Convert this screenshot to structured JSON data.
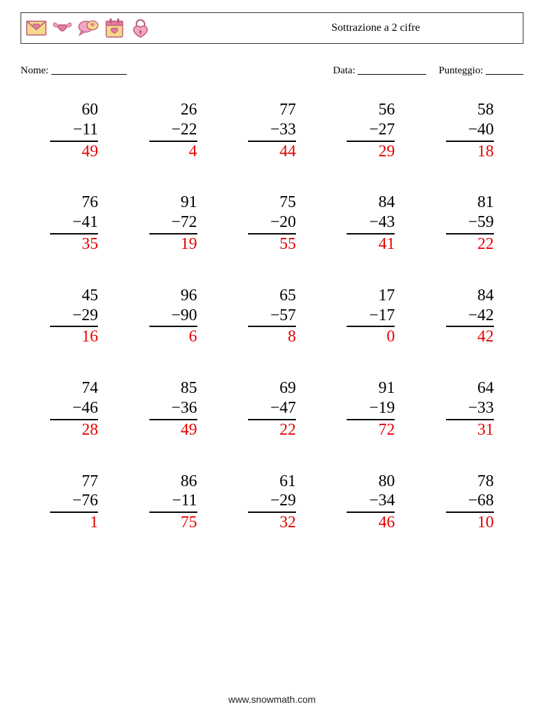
{
  "header": {
    "title": "Sottrazione a 2 cifre",
    "icon_stroke": "#b85c78",
    "icon_fill": "#f2a6c2",
    "icon_accent": "#e57ba0",
    "icon_box": "#f5d88a"
  },
  "labels": {
    "name": "Nome:",
    "date": "Data:",
    "score": "Punteggio:"
  },
  "style": {
    "rows": 5,
    "cols": 5,
    "answer_color": "#e60000",
    "text_color": "#000000",
    "font_size_problem": 24,
    "minus_sign": "−",
    "blank_name_w": 110,
    "blank_date_w": 100,
    "blank_score_w": 55
  },
  "problems": [
    {
      "a": 60,
      "b": 11,
      "ans": 49
    },
    {
      "a": 26,
      "b": 22,
      "ans": 4
    },
    {
      "a": 77,
      "b": 33,
      "ans": 44
    },
    {
      "a": 56,
      "b": 27,
      "ans": 29
    },
    {
      "a": 58,
      "b": 40,
      "ans": 18
    },
    {
      "a": 76,
      "b": 41,
      "ans": 35
    },
    {
      "a": 91,
      "b": 72,
      "ans": 19
    },
    {
      "a": 75,
      "b": 20,
      "ans": 55
    },
    {
      "a": 84,
      "b": 43,
      "ans": 41
    },
    {
      "a": 81,
      "b": 59,
      "ans": 22
    },
    {
      "a": 45,
      "b": 29,
      "ans": 16
    },
    {
      "a": 96,
      "b": 90,
      "ans": 6
    },
    {
      "a": 65,
      "b": 57,
      "ans": 8
    },
    {
      "a": 17,
      "b": 17,
      "ans": 0
    },
    {
      "a": 84,
      "b": 42,
      "ans": 42
    },
    {
      "a": 74,
      "b": 46,
      "ans": 28
    },
    {
      "a": 85,
      "b": 36,
      "ans": 49
    },
    {
      "a": 69,
      "b": 47,
      "ans": 22
    },
    {
      "a": 91,
      "b": 19,
      "ans": 72
    },
    {
      "a": 64,
      "b": 33,
      "ans": 31
    },
    {
      "a": 77,
      "b": 76,
      "ans": 1
    },
    {
      "a": 86,
      "b": 11,
      "ans": 75
    },
    {
      "a": 61,
      "b": 29,
      "ans": 32
    },
    {
      "a": 80,
      "b": 34,
      "ans": 46
    },
    {
      "a": 78,
      "b": 68,
      "ans": 10
    }
  ],
  "footer": {
    "url": "www.snowmath.com"
  }
}
